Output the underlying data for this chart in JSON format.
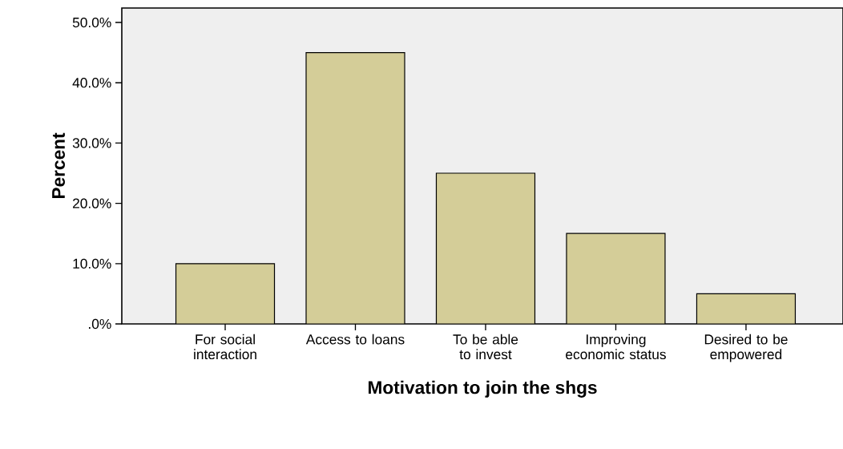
{
  "chart_data": {
    "type": "bar",
    "xlabel": "Motivation to join the shgs",
    "ylabel": "Percent",
    "categories": [
      "For social interaction",
      "Access to loans",
      "To be able to invest",
      "Improving economic status",
      "Desired to be empowered"
    ],
    "values": [
      10,
      45,
      25,
      15,
      5
    ],
    "color": "#d4cd98",
    "ylim": [
      0,
      52.4
    ],
    "yticks": [
      {
        "value": 0,
        "label": ".0%"
      },
      {
        "value": 10,
        "label": "10.0%"
      },
      {
        "value": 20,
        "label": "20.0%"
      },
      {
        "value": 30,
        "label": "30.0%"
      },
      {
        "value": 40,
        "label": "40.0%"
      },
      {
        "value": 50,
        "label": "50.0%"
      }
    ],
    "grid": false
  }
}
